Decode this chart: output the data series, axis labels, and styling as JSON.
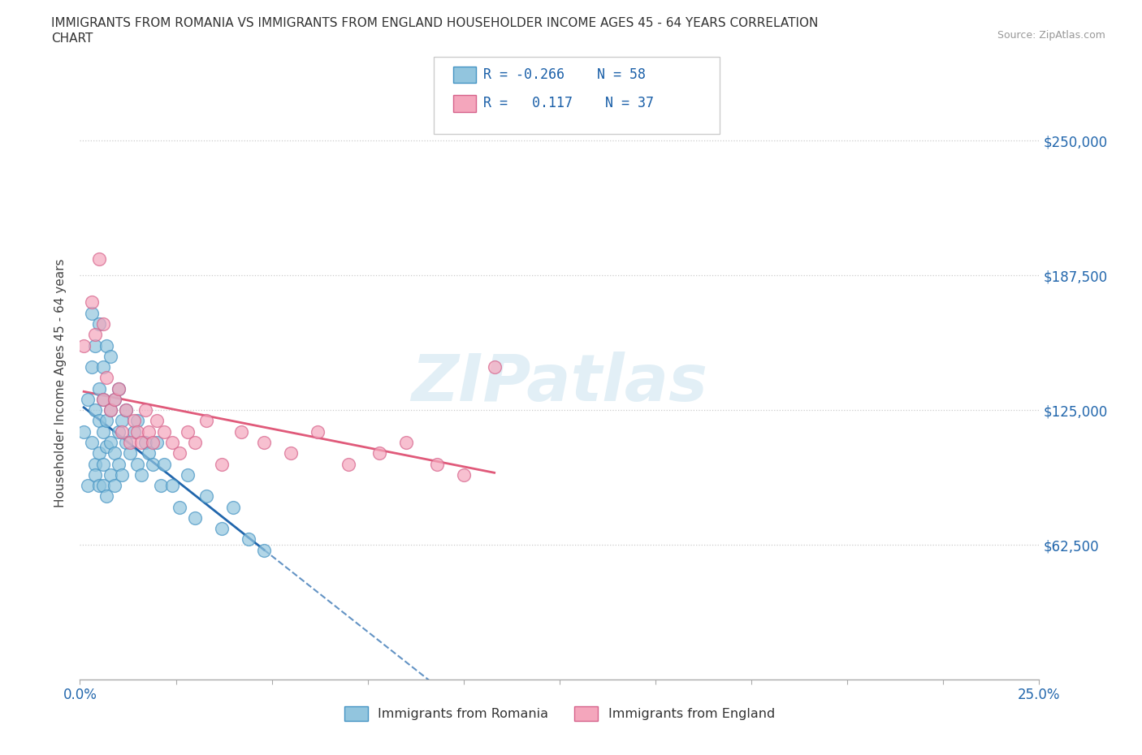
{
  "title_line1": "IMMIGRANTS FROM ROMANIA VS IMMIGRANTS FROM ENGLAND HOUSEHOLDER INCOME AGES 45 - 64 YEARS CORRELATION",
  "title_line2": "CHART",
  "source_text": "Source: ZipAtlas.com",
  "ylabel": "Householder Income Ages 45 - 64 years",
  "xlim": [
    0.0,
    0.25
  ],
  "ylim": [
    0,
    275000
  ],
  "yticks": [
    62500,
    125000,
    187500,
    250000
  ],
  "ytick_labels": [
    "$62,500",
    "$125,000",
    "$187,500",
    "$250,000"
  ],
  "xticks": [
    0.0,
    0.025,
    0.05,
    0.075,
    0.1,
    0.125,
    0.15,
    0.175,
    0.2,
    0.225,
    0.25
  ],
  "xtick_labels_show": [
    "0.0%",
    "",
    "",
    "",
    "",
    "",
    "",
    "",
    "",
    "",
    "25.0%"
  ],
  "watermark": "ZIPatlas",
  "color_romania": "#92c5de",
  "color_romania_edge": "#4393c3",
  "color_england": "#f4a6bc",
  "color_england_edge": "#d6618a",
  "color_romania_line": "#2166ac",
  "color_england_line": "#e05a7a",
  "color_text_blue": "#1a5fa8",
  "color_axis": "#2166ac",
  "background_color": "#ffffff",
  "grid_color": "#cccccc",
  "romania_x": [
    0.001,
    0.002,
    0.002,
    0.003,
    0.003,
    0.003,
    0.004,
    0.004,
    0.004,
    0.004,
    0.005,
    0.005,
    0.005,
    0.005,
    0.005,
    0.006,
    0.006,
    0.006,
    0.006,
    0.006,
    0.007,
    0.007,
    0.007,
    0.007,
    0.008,
    0.008,
    0.008,
    0.008,
    0.009,
    0.009,
    0.009,
    0.01,
    0.01,
    0.01,
    0.011,
    0.011,
    0.012,
    0.012,
    0.013,
    0.014,
    0.015,
    0.015,
    0.016,
    0.017,
    0.018,
    0.019,
    0.02,
    0.021,
    0.022,
    0.024,
    0.026,
    0.028,
    0.03,
    0.033,
    0.037,
    0.04,
    0.044,
    0.048
  ],
  "romania_y": [
    115000,
    130000,
    90000,
    110000,
    145000,
    170000,
    100000,
    125000,
    155000,
    95000,
    120000,
    135000,
    105000,
    90000,
    165000,
    130000,
    115000,
    100000,
    145000,
    90000,
    155000,
    120000,
    108000,
    85000,
    125000,
    110000,
    150000,
    95000,
    130000,
    105000,
    90000,
    135000,
    115000,
    100000,
    120000,
    95000,
    110000,
    125000,
    105000,
    115000,
    100000,
    120000,
    95000,
    110000,
    105000,
    100000,
    110000,
    90000,
    100000,
    90000,
    80000,
    95000,
    75000,
    85000,
    70000,
    80000,
    65000,
    60000
  ],
  "england_x": [
    0.001,
    0.003,
    0.004,
    0.005,
    0.006,
    0.006,
    0.007,
    0.008,
    0.009,
    0.01,
    0.011,
    0.012,
    0.013,
    0.014,
    0.015,
    0.016,
    0.017,
    0.018,
    0.019,
    0.02,
    0.022,
    0.024,
    0.026,
    0.028,
    0.03,
    0.033,
    0.037,
    0.042,
    0.048,
    0.055,
    0.062,
    0.07,
    0.078,
    0.085,
    0.093,
    0.1,
    0.108
  ],
  "england_y": [
    155000,
    175000,
    160000,
    195000,
    130000,
    165000,
    140000,
    125000,
    130000,
    135000,
    115000,
    125000,
    110000,
    120000,
    115000,
    110000,
    125000,
    115000,
    110000,
    120000,
    115000,
    110000,
    105000,
    115000,
    110000,
    120000,
    100000,
    115000,
    110000,
    105000,
    115000,
    100000,
    105000,
    110000,
    100000,
    95000,
    145000
  ]
}
